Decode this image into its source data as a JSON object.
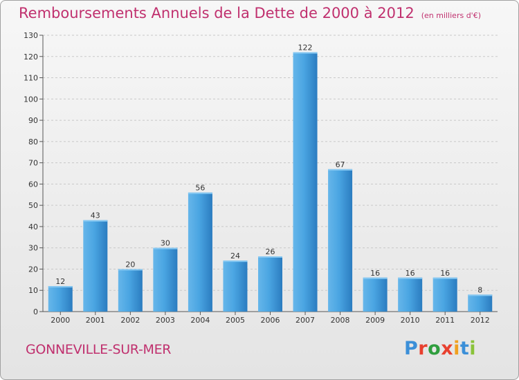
{
  "title": "Remboursements Annuels de la Dette de 2000 à 2012",
  "unit_note": "(en milliers d'€)",
  "city": "GONNEVILLE-SUR-MER",
  "logo": {
    "letters": [
      "P",
      "r",
      "o",
      "x",
      "i",
      "t",
      "i"
    ],
    "colors": [
      "#3b8fd8",
      "#e8402f",
      "#2f9e3e",
      "#e8402f",
      "#f0a020",
      "#3b8fd8",
      "#8ac33a"
    ]
  },
  "colors": {
    "bar": "#3f98d8",
    "bar_light": "#66b6ea",
    "bar_dark": "#2b7cc0",
    "title": "#c0306e"
  },
  "chart_data": {
    "type": "bar",
    "categories": [
      "2000",
      "2001",
      "2002",
      "2003",
      "2004",
      "2005",
      "2006",
      "2007",
      "2008",
      "2009",
      "2010",
      "2011",
      "2012"
    ],
    "values": [
      12,
      43,
      20,
      30,
      56,
      24,
      26,
      122,
      67,
      16,
      16,
      16,
      8
    ],
    "ylim": [
      0,
      130
    ],
    "yticks": [
      0,
      10,
      20,
      30,
      40,
      50,
      60,
      70,
      80,
      90,
      100,
      110,
      120,
      130
    ],
    "grid": true
  }
}
